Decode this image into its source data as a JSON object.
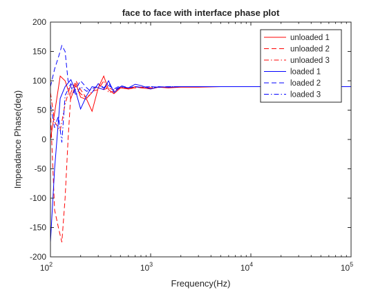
{
  "chart_data": {
    "type": "line",
    "title": "face to face with interface phase plot",
    "xlabel": "Frequency(Hz)",
    "ylabel": "Impeadance Phase(deg)",
    "xscale": "log",
    "xlim": [
      100,
      100000
    ],
    "ylim": [
      -200,
      200
    ],
    "x_ticks": [
      100,
      1000,
      10000,
      100000
    ],
    "x_tick_labels": [
      {
        "base": "10",
        "exp": "2"
      },
      {
        "base": "10",
        "exp": "3"
      },
      {
        "base": "10",
        "exp": "4"
      },
      {
        "base": "10",
        "exp": "5"
      }
    ],
    "y_ticks": [
      -200,
      -150,
      -100,
      -50,
      0,
      50,
      100,
      150,
      200
    ],
    "grid": false,
    "legend_position": "top-right",
    "series": [
      {
        "name": "unloaded 1",
        "color": "#ff0000",
        "dash": "solid",
        "x": [
          100,
          110,
          125,
          140,
          160,
          180,
          200,
          230,
          260,
          300,
          340,
          380,
          430,
          500,
          600,
          700,
          800,
          900,
          1000,
          1200,
          1500,
          2000,
          3000,
          5000,
          10000,
          30000,
          100000
        ],
        "y": [
          0,
          45,
          108,
          100,
          70,
          95,
          72,
          68,
          48,
          88,
          108,
          85,
          78,
          88,
          86,
          90,
          88,
          87,
          86,
          89,
          88,
          89,
          89,
          90,
          90,
          90,
          90
        ]
      },
      {
        "name": "unloaded 2",
        "color": "#ff0000",
        "dash": "dashed",
        "x": [
          100,
          110,
          120,
          130,
          140,
          150,
          160,
          180,
          200,
          230,
          260,
          300,
          340,
          380,
          430,
          500,
          600,
          700,
          800,
          1000,
          1200,
          1500,
          2000,
          3000,
          5000,
          10000,
          100000
        ],
        "y": [
          50,
          -120,
          -150,
          -175,
          -100,
          0,
          80,
          100,
          85,
          70,
          80,
          95,
          85,
          88,
          84,
          88,
          87,
          88,
          89,
          88,
          89,
          89,
          90,
          90,
          90,
          90,
          90
        ]
      },
      {
        "name": "unloaded 3",
        "color": "#ff0000",
        "dash": "dashdot",
        "x": [
          100,
          110,
          125,
          140,
          160,
          180,
          200,
          230,
          260,
          300,
          340,
          380,
          430,
          500,
          600,
          700,
          800,
          1000,
          1200,
          1500,
          2000,
          3000,
          5000,
          10000,
          100000
        ],
        "y": [
          80,
          30,
          15,
          60,
          95,
          90,
          78,
          70,
          82,
          85,
          100,
          80,
          82,
          90,
          86,
          88,
          89,
          88,
          89,
          89,
          90,
          90,
          90,
          90,
          90
        ]
      },
      {
        "name": "loaded 1",
        "color": "#0000ff",
        "dash": "solid",
        "x": [
          100,
          110,
          125,
          140,
          160,
          180,
          200,
          230,
          260,
          300,
          340,
          380,
          430,
          500,
          600,
          700,
          800,
          1000,
          1200,
          1500,
          2000,
          3000,
          5000,
          10000,
          100000
        ],
        "y": [
          -175,
          -50,
          70,
          90,
          102,
          80,
          52,
          75,
          90,
          88,
          85,
          100,
          80,
          90,
          88,
          94,
          92,
          86,
          90,
          89,
          90,
          90,
          90,
          90,
          90
        ]
      },
      {
        "name": "loaded 2",
        "color": "#0000ff",
        "dash": "dashed",
        "x": [
          100,
          110,
          120,
          130,
          140,
          150,
          170,
          200,
          230,
          260,
          300,
          340,
          380,
          430,
          500,
          600,
          700,
          800,
          1000,
          1200,
          1500,
          2000,
          3000,
          5000,
          10000,
          100000
        ],
        "y": [
          90,
          120,
          140,
          160,
          150,
          100,
          80,
          100,
          88,
          80,
          95,
          88,
          92,
          86,
          92,
          88,
          90,
          89,
          90,
          89,
          90,
          90,
          90,
          90,
          90,
          90
        ]
      },
      {
        "name": "loaded 3",
        "color": "#0000ff",
        "dash": "dashdot",
        "x": [
          100,
          110,
          120,
          130,
          140,
          160,
          180,
          200,
          230,
          260,
          300,
          340,
          380,
          430,
          500,
          600,
          700,
          800,
          1000,
          1200,
          1500,
          2000,
          3000,
          5000,
          10000,
          100000
        ],
        "y": [
          60,
          20,
          40,
          -5,
          75,
          95,
          75,
          90,
          82,
          86,
          92,
          88,
          96,
          84,
          90,
          88,
          90,
          89,
          90,
          89,
          90,
          90,
          90,
          90,
          90,
          90
        ]
      }
    ]
  }
}
